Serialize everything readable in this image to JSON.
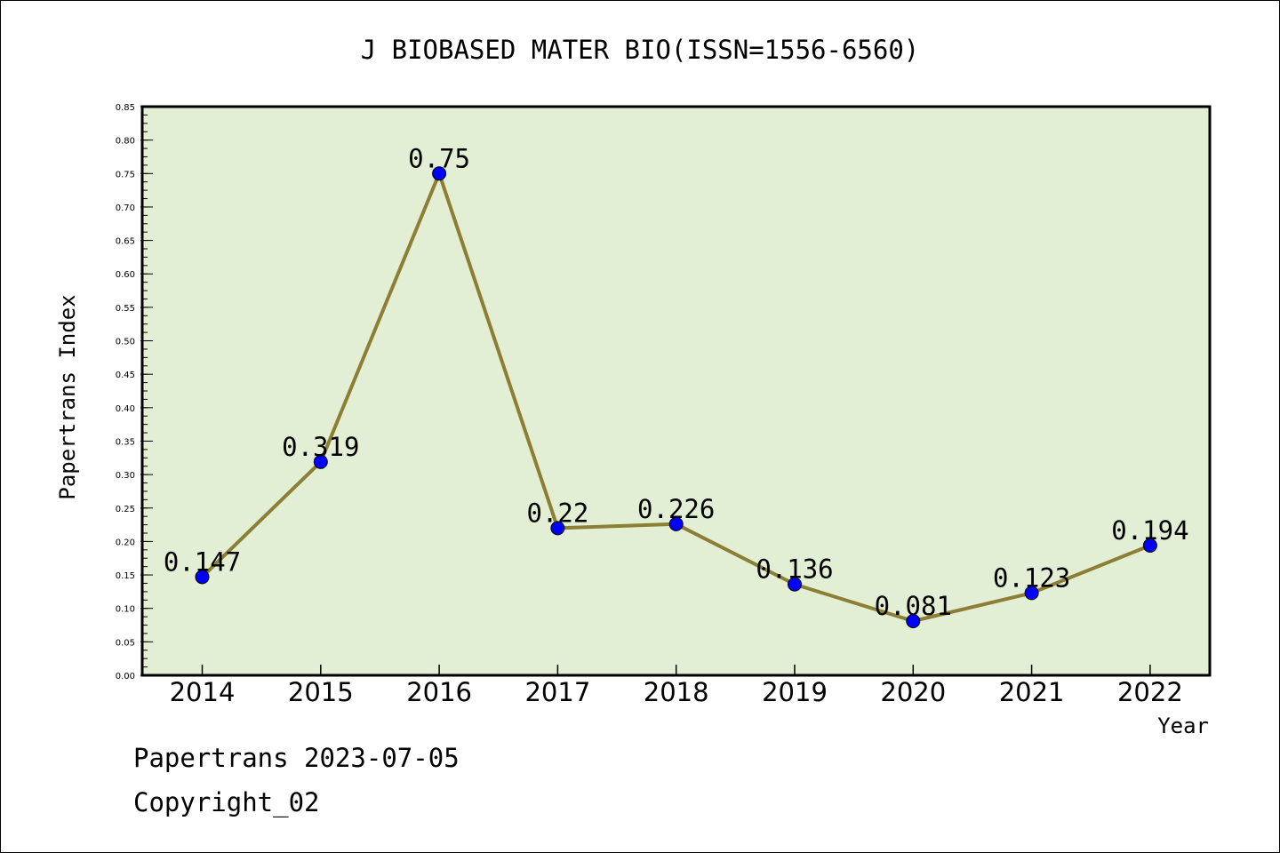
{
  "chart_data": {
    "type": "line",
    "title": "J BIOBASED MATER BIO(ISSN=1556-6560)",
    "xlabel": "Year",
    "ylabel": "Papertrans Index",
    "categories": [
      "2014",
      "2015",
      "2016",
      "2017",
      "2018",
      "2019",
      "2020",
      "2021",
      "2022"
    ],
    "values": [
      0.147,
      0.319,
      0.75,
      0.22,
      0.226,
      0.136,
      0.081,
      0.123,
      0.194
    ],
    "data_labels": [
      "0.147",
      "0.319",
      "0.75",
      "0.22",
      "0.226",
      "0.136",
      "0.081",
      "0.123",
      "0.194"
    ],
    "ylim": [
      0,
      0.85
    ],
    "yticks": [
      "0.00",
      "0.05",
      "0.10",
      "0.15",
      "0.20",
      "0.25",
      "0.30",
      "0.35",
      "0.40",
      "0.45",
      "0.50",
      "0.55",
      "0.60",
      "0.65",
      "0.70",
      "0.75",
      "0.80",
      "0.85"
    ],
    "grid": false,
    "colors": {
      "plot_background": "#e2efd4",
      "line": "#8c7e34",
      "marker": "#0000ff"
    }
  },
  "footer": {
    "date_line": "Papertrans 2023-07-05",
    "copyright": "Copyright_02"
  }
}
